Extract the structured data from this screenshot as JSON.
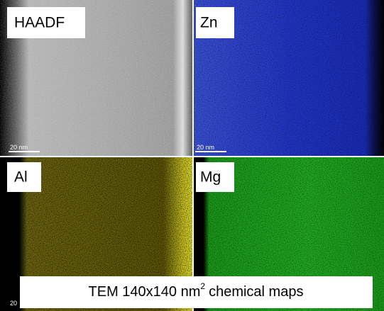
{
  "panels": [
    {
      "label": "HAADF",
      "scale": "20 nm"
    },
    {
      "label": "Zn",
      "scale": "20 nm"
    },
    {
      "label": "Al",
      "scale": "20"
    },
    {
      "label": "Mg"
    }
  ],
  "caption": {
    "text": "TEM 140x140 nm",
    "sup": "2",
    "rest": "chemical maps"
  }
}
